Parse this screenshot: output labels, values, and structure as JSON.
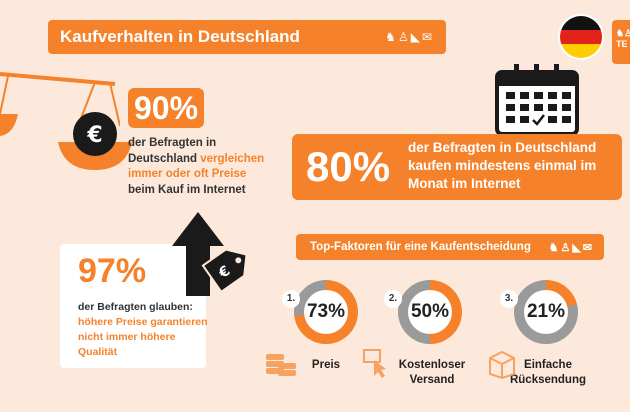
{
  "header": {
    "title": "Kaufverhalten in Deutschland",
    "icons": [
      "rocking-horse-icon",
      "dress-icon",
      "shoe-icon",
      "mail-icon"
    ]
  },
  "logo": {
    "text": "TE"
  },
  "stat90": {
    "value": "90%",
    "line1": "der Befragten in",
    "line2_plain": "Deutschland ",
    "line2_highlight": "vergleichen immer oder oft Preise",
    "line3": " beim Kauf im Internet"
  },
  "stat80": {
    "value": "80%",
    "text": "der Befragten in Deutschland kaufen mindestens einmal im Monat im Internet"
  },
  "stat97": {
    "value": "97%",
    "line1": "der Befragten glauben:",
    "highlight": "höhere Preise garantieren nicht immer höhere Qualität"
  },
  "factors": {
    "title": "Top-Faktoren für eine Kaufentscheidung",
    "items": [
      {
        "rank": "1.",
        "percent": "73%",
        "value": 73,
        "label": "Preis"
      },
      {
        "rank": "2.",
        "percent": "50%",
        "value": 50,
        "label": "Kostenloser Versand"
      },
      {
        "rank": "3.",
        "percent": "21%",
        "value": 21,
        "label": "Einfache Rücksendung"
      }
    ]
  },
  "colors": {
    "accent": "#f5822a",
    "background": "#fde9dc",
    "ring": "#9a9a9a",
    "dark": "#1a1a1a"
  }
}
